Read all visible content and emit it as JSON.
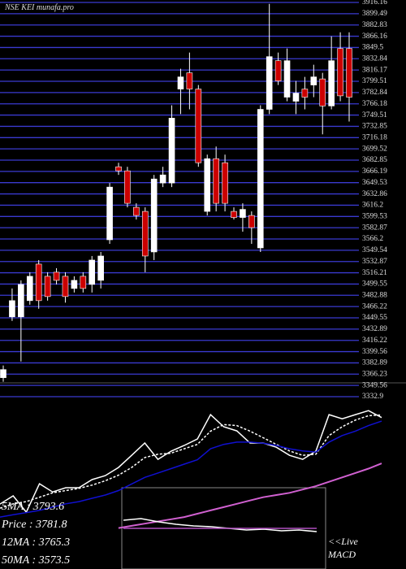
{
  "chart_data": [
    {
      "type": "candlestick",
      "title": "NSE KEI munafa.pro",
      "ylim": [
        3332.9,
        3916.16
      ],
      "yticks": [
        3916.16,
        3899.49,
        3882.83,
        3866.16,
        3849.5,
        3832.84,
        3816.17,
        3799.51,
        3782.84,
        3766.18,
        3749.51,
        3732.85,
        3716.18,
        3699.52,
        3682.85,
        3666.19,
        3649.53,
        3632.86,
        3616.2,
        3599.53,
        3582.87,
        3566.2,
        3549.54,
        3532.87,
        3516.21,
        3499.55,
        3482.88,
        3466.22,
        3449.55,
        3432.89,
        3416.22,
        3399.56,
        3382.89,
        3366.23,
        3349.56,
        3332.9
      ],
      "grid": true,
      "grid_color": "#3a3ad0",
      "up_color": "#ffffff",
      "down_color": "#cc0000",
      "ohlc": [
        [
          3361,
          3379,
          3355,
          3373
        ],
        [
          3451,
          3493,
          3445,
          3475
        ],
        [
          3451,
          3505,
          3385,
          3499
        ],
        [
          3475,
          3517,
          3469,
          3511
        ],
        [
          3529,
          3535,
          3463,
          3475
        ],
        [
          3511,
          3517,
          3475,
          3481
        ],
        [
          3517,
          3523,
          3499,
          3505
        ],
        [
          3511,
          3517,
          3472,
          3481
        ],
        [
          3493,
          3511,
          3487,
          3505
        ],
        [
          3511,
          3517,
          3487,
          3493
        ],
        [
          3499,
          3541,
          3487,
          3535
        ],
        [
          3505,
          3547,
          3493,
          3541
        ],
        [
          3565,
          3649,
          3559,
          3643
        ],
        [
          3673,
          3679,
          3661,
          3667
        ],
        [
          3667,
          3673,
          3613,
          3619
        ],
        [
          3613,
          3619,
          3595,
          3601
        ],
        [
          3607,
          3613,
          3517,
          3541
        ],
        [
          3547,
          3661,
          3535,
          3655
        ],
        [
          3649,
          3673,
          3643,
          3661
        ],
        [
          3649,
          3764,
          3643,
          3745
        ],
        [
          3788,
          3818,
          3751,
          3806
        ],
        [
          3812,
          3842,
          3758,
          3788
        ],
        [
          3788,
          3794,
          3673,
          3679
        ],
        [
          3607,
          3691,
          3601,
          3685
        ],
        [
          3685,
          3703,
          3607,
          3619
        ],
        [
          3679,
          3691,
          3607,
          3619
        ],
        [
          3607,
          3613,
          3595,
          3598
        ],
        [
          3598,
          3619,
          3577,
          3610
        ],
        [
          3601,
          3607,
          3559,
          3583
        ],
        [
          3553,
          3764,
          3547,
          3758
        ],
        [
          3758,
          3914,
          3751,
          3836
        ],
        [
          3830,
          3842,
          3794,
          3800
        ],
        [
          3776,
          3848,
          3770,
          3830
        ],
        [
          3770,
          3800,
          3751,
          3782
        ],
        [
          3788,
          3806,
          3758,
          3776
        ],
        [
          3794,
          3824,
          3776,
          3806
        ],
        [
          3803,
          3812,
          3721,
          3763
        ],
        [
          3763,
          3866,
          3758,
          3830
        ],
        [
          3848,
          3872,
          3770,
          3778
        ],
        [
          3848,
          3872,
          3740,
          3776
        ]
      ]
    },
    {
      "type": "line",
      "ylim": [
        3094,
        3906
      ],
      "series": [
        {
          "color": "#ffffff",
          "dash": false,
          "values": [
            3389,
            3426,
            3352,
            3481,
            3444,
            3463,
            3463,
            3500,
            3518,
            3555,
            3610,
            3666,
            3592,
            3629,
            3655,
            3684,
            3795,
            3740,
            3721,
            3666,
            3666,
            3647,
            3610,
            3592,
            3629,
            3795,
            3776,
            3795,
            3813,
            3781.8
          ]
        },
        {
          "color": "#ffffff",
          "dash": true,
          "values": [
            3370,
            3390,
            3400,
            3420,
            3440,
            3450,
            3460,
            3475,
            3495,
            3520,
            3555,
            3600,
            3615,
            3620,
            3640,
            3660,
            3720,
            3750,
            3745,
            3720,
            3690,
            3660,
            3630,
            3610,
            3615,
            3700,
            3740,
            3770,
            3790,
            3793.6
          ]
        },
        {
          "color": "#1010d0",
          "dash": false,
          "values": [
            3330,
            3340,
            3350,
            3360,
            3375,
            3390,
            3400,
            3415,
            3430,
            3450,
            3480,
            3510,
            3530,
            3550,
            3570,
            3590,
            3640,
            3660,
            3670,
            3670,
            3665,
            3655,
            3640,
            3630,
            3625,
            3670,
            3700,
            3720,
            3745,
            3765.3
          ]
        },
        {
          "color": "#d060d0",
          "dash": false,
          "values": [
            null,
            null,
            null,
            null,
            null,
            null,
            null,
            null,
            null,
            3280,
            3290,
            3300,
            3310,
            3320,
            3330,
            3345,
            3360,
            3375,
            3390,
            3405,
            3420,
            3430,
            3440,
            3455,
            3470,
            3490,
            3510,
            3530,
            3550,
            3573.5
          ]
        }
      ],
      "annotations": [
        "5MA : 3793.6",
        "Price : 3781.8",
        "12MA : 3765.3",
        "50MA : 3573.5"
      ]
    },
    {
      "type": "macd",
      "title": "MACD",
      "label": "<<Live",
      "ylim": [
        -50,
        50
      ],
      "series": [
        {
          "color": "#ffffff",
          "values": [
            10,
            12,
            8,
            5,
            3,
            2,
            0,
            -2,
            -1,
            -3,
            -2,
            -4
          ]
        },
        {
          "color": "#b050c0",
          "values": [
            0,
            0,
            0,
            0,
            0,
            0,
            0,
            0,
            0,
            0,
            0,
            0
          ]
        }
      ]
    }
  ]
}
